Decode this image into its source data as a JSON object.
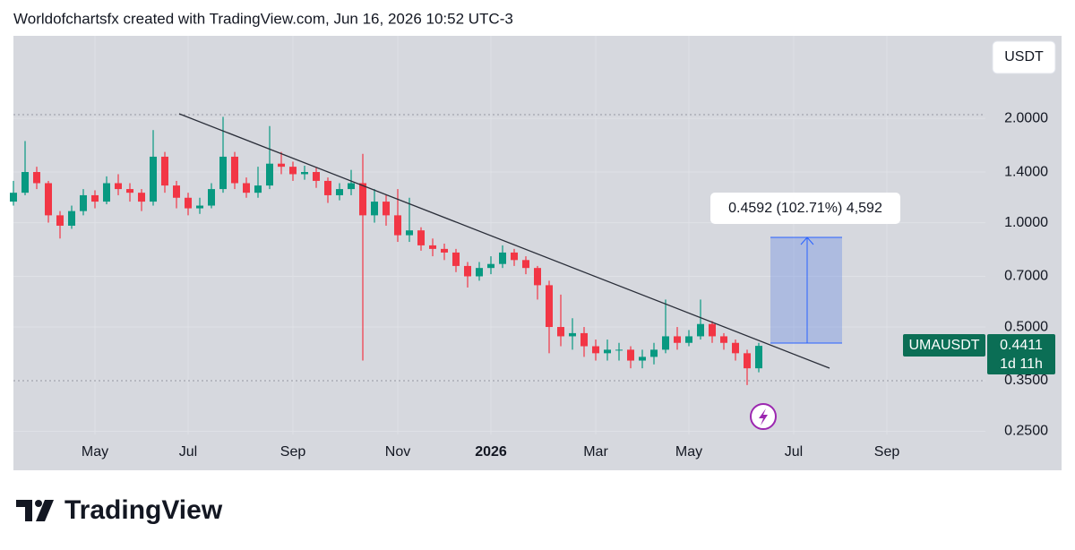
{
  "chart_data": {
    "type": "candlestick",
    "attribution": "Worldofchartsfx created with TradingView.com, Jun 16, 2026 10:52 UTC-3",
    "currency": "USDT",
    "symbol": "UMAUSDT",
    "countdown": "1d 11h",
    "measure_label": "0.4592 (102.71%) 4,592",
    "brand": "TradingView",
    "log": true,
    "grid": true,
    "colors": {
      "up": "#089981",
      "down": "#f23645"
    },
    "ylim": [
      0.193,
      3.46
    ],
    "yticks": [
      {
        "value": 0.25,
        "label": "0.2500"
      },
      {
        "value": 0.35,
        "label": "0.3500"
      },
      {
        "value": 0.5,
        "label": "0.5000"
      },
      {
        "value": 0.7,
        "label": "0.7000"
      },
      {
        "value": 1.0,
        "label": "1.0000"
      },
      {
        "value": 1.4,
        "label": "1.4000"
      },
      {
        "value": 2.0,
        "label": "2.0000"
      }
    ],
    "categories": [
      null,
      null,
      null,
      null,
      null,
      null,
      null,
      "May",
      null,
      null,
      null,
      null,
      null,
      null,
      null,
      "Jul",
      null,
      null,
      null,
      null,
      null,
      null,
      null,
      null,
      "Sep",
      null,
      null,
      null,
      null,
      null,
      null,
      null,
      null,
      "Nov",
      null,
      null,
      null,
      null,
      null,
      null,
      null,
      "2026",
      null,
      null,
      null,
      null,
      null,
      null,
      null,
      null,
      "Mar",
      null,
      null,
      null,
      null,
      null,
      null,
      null,
      "May",
      null,
      null,
      null,
      null,
      null,
      null,
      null,
      null,
      "Jul",
      null,
      null,
      null,
      null,
      null,
      null,
      null,
      "Sep",
      null,
      null,
      null,
      null,
      null,
      null,
      null,
      null
    ],
    "open": [
      1.15,
      1.22,
      1.4,
      1.3,
      1.05,
      0.98,
      1.08,
      1.2,
      1.15,
      1.3,
      1.25,
      1.22,
      1.15,
      1.55,
      1.28,
      1.18,
      1.1,
      1.12,
      1.25,
      1.55,
      1.3,
      1.22,
      1.28,
      1.48,
      1.45,
      1.38,
      1.4,
      1.32,
      1.2,
      1.25,
      1.3,
      1.05,
      1.15,
      1.05,
      0.92,
      0.95,
      0.86,
      0.84,
      0.82,
      0.75,
      0.7,
      0.74,
      0.76,
      0.82,
      0.78,
      0.74,
      0.66,
      0.5,
      0.47,
      0.48,
      0.44,
      0.42,
      0.43,
      0.43,
      0.4,
      0.41,
      0.43,
      0.47,
      0.45,
      0.47,
      0.51,
      0.47,
      0.45,
      0.42,
      0.38,
      null,
      null,
      null,
      null,
      null,
      null,
      null,
      null,
      null,
      null,
      null,
      null,
      null,
      null,
      null,
      null,
      null,
      null,
      null
    ],
    "high": [
      1.32,
      1.72,
      1.45,
      1.32,
      1.08,
      1.12,
      1.25,
      1.24,
      1.36,
      1.38,
      1.3,
      1.25,
      1.85,
      1.6,
      1.32,
      1.22,
      1.18,
      1.3,
      2.02,
      1.6,
      1.35,
      1.45,
      1.9,
      1.6,
      1.5,
      1.46,
      1.44,
      1.35,
      1.3,
      1.42,
      1.58,
      1.25,
      1.2,
      1.25,
      1.18,
      0.97,
      0.9,
      0.87,
      0.84,
      0.77,
      0.77,
      0.8,
      0.86,
      0.84,
      0.8,
      0.75,
      0.68,
      0.62,
      0.53,
      0.5,
      0.46,
      0.46,
      0.45,
      0.44,
      0.43,
      0.45,
      0.6,
      0.5,
      0.49,
      0.6,
      0.52,
      0.48,
      0.46,
      0.43,
      0.45,
      null,
      null,
      null,
      null,
      null,
      null,
      null,
      null,
      null,
      null,
      null,
      null,
      null,
      null,
      null,
      null,
      null,
      null,
      null
    ],
    "low": [
      1.12,
      1.2,
      1.25,
      1.0,
      0.9,
      0.96,
      1.05,
      1.1,
      1.13,
      1.2,
      1.15,
      1.08,
      1.12,
      1.22,
      1.1,
      1.05,
      1.06,
      1.1,
      1.22,
      1.25,
      1.18,
      1.18,
      1.25,
      1.38,
      1.32,
      1.33,
      1.26,
      1.14,
      1.16,
      1.2,
      0.4,
      1.0,
      0.98,
      0.88,
      0.88,
      0.83,
      0.8,
      0.78,
      0.72,
      0.65,
      0.68,
      0.71,
      0.74,
      0.75,
      0.71,
      0.6,
      0.42,
      0.44,
      0.43,
      0.41,
      0.4,
      0.4,
      0.4,
      0.38,
      0.38,
      0.39,
      0.42,
      0.43,
      0.44,
      0.46,
      0.45,
      0.43,
      0.4,
      0.34,
      0.37,
      null,
      null,
      null,
      null,
      null,
      null,
      null,
      null,
      null,
      null,
      null,
      null,
      null,
      null,
      null,
      null,
      null,
      null,
      null
    ],
    "close": [
      1.22,
      1.4,
      1.3,
      1.05,
      0.98,
      1.08,
      1.2,
      1.15,
      1.3,
      1.25,
      1.22,
      1.15,
      1.55,
      1.28,
      1.18,
      1.1,
      1.12,
      1.25,
      1.55,
      1.3,
      1.22,
      1.28,
      1.48,
      1.45,
      1.38,
      1.4,
      1.32,
      1.2,
      1.25,
      1.3,
      1.05,
      1.15,
      1.05,
      0.92,
      0.95,
      0.86,
      0.84,
      0.82,
      0.75,
      0.7,
      0.74,
      0.76,
      0.82,
      0.78,
      0.74,
      0.66,
      0.5,
      0.47,
      0.48,
      0.44,
      0.42,
      0.43,
      0.43,
      0.4,
      0.41,
      0.43,
      0.47,
      0.45,
      0.47,
      0.51,
      0.47,
      0.45,
      0.42,
      0.38,
      0.4411,
      null,
      null,
      null,
      null,
      null,
      null,
      null,
      null,
      null,
      null,
      null,
      null,
      null,
      null,
      null,
      null,
      null,
      null,
      null
    ]
  }
}
